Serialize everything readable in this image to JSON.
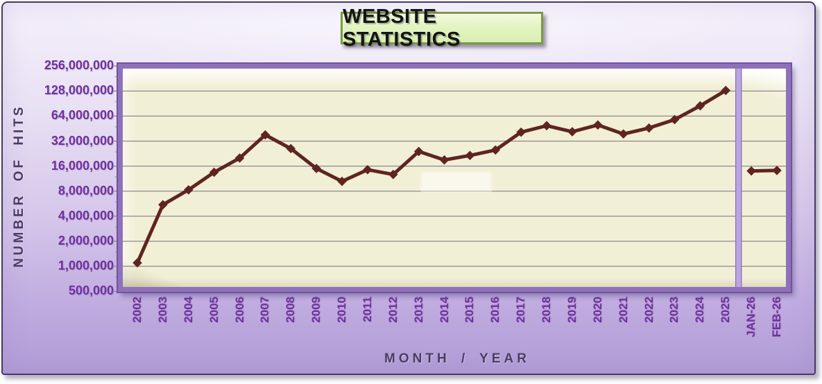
{
  "chart_data": {
    "type": "line",
    "title": "WEBSITE STATISTICS",
    "xlabel": "MONTH / YEAR",
    "ylabel": "NUMBER OF HITS",
    "y_scale": "log2",
    "ylim": [
      500000,
      256000000
    ],
    "grid": "horizontal",
    "legend": "none",
    "y_ticks": [
      {
        "label": "256,000,000",
        "value": 256000000
      },
      {
        "label": "128,000,000",
        "value": 128000000
      },
      {
        "label": "64,000,000",
        "value": 64000000
      },
      {
        "label": "32,000,000",
        "value": 32000000
      },
      {
        "label": "16,000,000",
        "value": 16000000
      },
      {
        "label": "8,000,000",
        "value": 8000000
      },
      {
        "label": "4,000,000",
        "value": 4000000
      },
      {
        "label": "2,000,000",
        "value": 2000000
      },
      {
        "label": "1,000,000",
        "value": 1000000
      },
      {
        "label": "500,000",
        "value": 500000
      }
    ],
    "categories": [
      "2002",
      "2003",
      "2004",
      "2005",
      "2006",
      "2007",
      "2008",
      "2009",
      "2010",
      "2011",
      "2012",
      "2013",
      "2014",
      "2015",
      "2016",
      "2017",
      "2018",
      "2019",
      "2020",
      "2021",
      "2022",
      "2023",
      "2024",
      "2025",
      "JAN-26",
      "FEB-26"
    ],
    "series": [
      {
        "name": "hits",
        "values": [
          1100000,
          5500000,
          8300000,
          13500000,
          20000000,
          38000000,
          26000000,
          15000000,
          10500000,
          14500000,
          12700000,
          24000000,
          19000000,
          21500000,
          25000000,
          41000000,
          49000000,
          41500000,
          50000000,
          39000000,
          46000000,
          58000000,
          85000000,
          130000000,
          14000000,
          14200000
        ]
      }
    ],
    "segment_breaks": [
      24
    ],
    "divider_between": [
      "2025",
      "JAN-26"
    ]
  },
  "colors": {
    "line": "#5f2421",
    "plot_bg": "#f2efd7",
    "plot_border": "#8f71ba",
    "panel_border": "#463767",
    "gridline": "#7f7f7f",
    "tick_label": "#7030a0",
    "axis_title": "#4b3c64",
    "divider": "#bca6e1",
    "divider_edge": "#8d70ba",
    "title_box_bg": "#e4f4c3",
    "title_box_border": "#7c9a45",
    "title_text": "#141414"
  }
}
